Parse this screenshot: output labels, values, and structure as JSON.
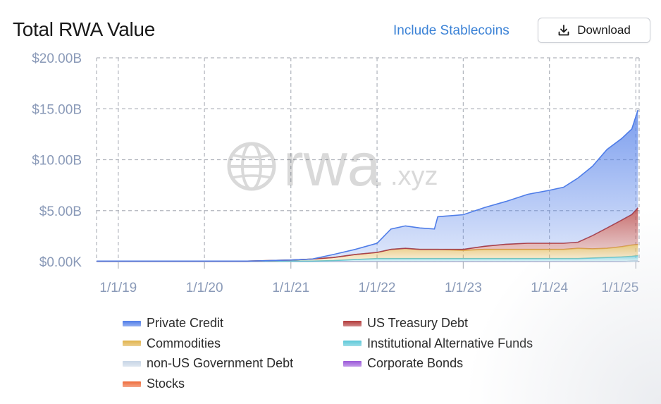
{
  "header": {
    "title": "Total RWA Value",
    "toggle_label": "Include Stablecoins",
    "download_label": "Download"
  },
  "watermark": {
    "main": "rwa",
    "suffix": ".xyz"
  },
  "colors": {
    "private_credit": "#4f7de8",
    "us_treasury": "#b23a3a",
    "commodities": "#e0b24a",
    "institutional_alt": "#5cc8d8",
    "non_us_gov": "#c8d6e6",
    "corporate_bonds": "#9b59d9",
    "stocks": "#ee6b3a",
    "axis_text": "#8a9ab8",
    "grid": "#b0b4bc"
  },
  "chart_data": {
    "type": "area",
    "stacked": true,
    "title": "Total RWA Value",
    "xlabel": "",
    "ylabel": "",
    "ylim": [
      0,
      20000000000
    ],
    "xlim": [
      "2018-10-01",
      "2025-01-15"
    ],
    "y_ticks": [
      0,
      5000000000,
      10000000000,
      15000000000,
      20000000000
    ],
    "y_tick_labels": [
      "$0.00K",
      "$5.00B",
      "$10.00B",
      "$15.00B",
      "$20.00B"
    ],
    "x_ticks": [
      "2019-01-01",
      "2020-01-01",
      "2021-01-01",
      "2022-01-01",
      "2023-01-01",
      "2024-01-01",
      "2025-01-01"
    ],
    "x_tick_labels": [
      "1/1/19",
      "1/1/20",
      "1/1/21",
      "1/1/22",
      "1/1/23",
      "1/1/24",
      "1/1/25"
    ],
    "grid": true,
    "legend_position": "bottom",
    "x": [
      "2018-10-01",
      "2019-01-01",
      "2019-07-01",
      "2020-01-01",
      "2020-07-01",
      "2021-01-01",
      "2021-04-01",
      "2021-07-01",
      "2021-10-01",
      "2022-01-01",
      "2022-03-01",
      "2022-05-01",
      "2022-07-01",
      "2022-09-01",
      "2022-09-15",
      "2023-01-01",
      "2023-04-01",
      "2023-07-01",
      "2023-10-01",
      "2024-01-01",
      "2024-03-01",
      "2024-05-01",
      "2024-07-01",
      "2024-09-01",
      "2024-11-01",
      "2024-12-15",
      "2025-01-10"
    ],
    "series": [
      {
        "name": "Stocks",
        "color_key": "stocks",
        "values": [
          0,
          0,
          0,
          0,
          0,
          0,
          0,
          0,
          0,
          0,
          0,
          0,
          0,
          0,
          0,
          0,
          0,
          0,
          0,
          0,
          0,
          0,
          0,
          0,
          0.01,
          0.02,
          0.03
        ]
      },
      {
        "name": "Corporate Bonds",
        "color_key": "corporate_bonds",
        "values": [
          0,
          0,
          0,
          0,
          0,
          0,
          0,
          0,
          0,
          0,
          0,
          0,
          0,
          0,
          0,
          0,
          0,
          0,
          0,
          0,
          0,
          0,
          0,
          0,
          0,
          0,
          0
        ]
      },
      {
        "name": "non-US Government Debt",
        "color_key": "non_us_gov",
        "values": [
          0,
          0,
          0,
          0,
          0,
          0,
          0,
          0,
          0,
          0,
          0,
          0,
          0,
          0,
          0,
          0,
          0,
          0,
          0,
          0,
          0,
          0,
          0,
          0,
          0,
          0,
          0
        ]
      },
      {
        "name": "Institutional Alternative Funds",
        "color_key": "institutional_alt",
        "values": [
          0.05,
          0.05,
          0.05,
          0.05,
          0.05,
          0.05,
          0.05,
          0.1,
          0.2,
          0.3,
          0.3,
          0.3,
          0.3,
          0.3,
          0.3,
          0.3,
          0.3,
          0.3,
          0.3,
          0.3,
          0.3,
          0.3,
          0.35,
          0.4,
          0.45,
          0.5,
          0.55
        ]
      },
      {
        "name": "Commodities",
        "color_key": "commodities",
        "values": [
          0,
          0,
          0,
          0,
          0,
          0.1,
          0.2,
          0.3,
          0.5,
          0.6,
          0.9,
          1.0,
          0.9,
          0.9,
          0.9,
          0.8,
          0.9,
          0.9,
          0.9,
          0.9,
          0.9,
          1.0,
          0.9,
          0.9,
          1.0,
          1.1,
          1.1
        ]
      },
      {
        "name": "US Treasury Debt",
        "color_key": "us_treasury",
        "values": [
          0,
          0,
          0,
          0,
          0,
          0,
          0,
          0,
          0,
          0,
          0,
          0,
          0,
          0,
          0,
          0.1,
          0.3,
          0.5,
          0.6,
          0.6,
          0.6,
          0.6,
          1.3,
          2.0,
          2.6,
          3.0,
          3.6
        ]
      },
      {
        "name": "Private Credit",
        "color_key": "private_credit",
        "values": [
          0,
          0,
          0,
          0,
          0,
          0,
          0,
          0.3,
          0.5,
          0.9,
          2.0,
          2.2,
          2.1,
          2.0,
          3.2,
          3.4,
          3.8,
          4.2,
          4.8,
          5.2,
          5.5,
          6.3,
          6.8,
          7.7,
          8.0,
          8.4,
          9.6
        ]
      }
    ],
    "series_units": "billions USD"
  },
  "legend": [
    {
      "label": "Private Credit",
      "color_key": "private_credit"
    },
    {
      "label": "US Treasury Debt",
      "color_key": "us_treasury"
    },
    {
      "label": "Commodities",
      "color_key": "commodities"
    },
    {
      "label": "Institutional Alternative Funds",
      "color_key": "institutional_alt"
    },
    {
      "label": "non-US Government Debt",
      "color_key": "non_us_gov"
    },
    {
      "label": "Corporate Bonds",
      "color_key": "corporate_bonds"
    },
    {
      "label": "Stocks",
      "color_key": "stocks"
    }
  ]
}
